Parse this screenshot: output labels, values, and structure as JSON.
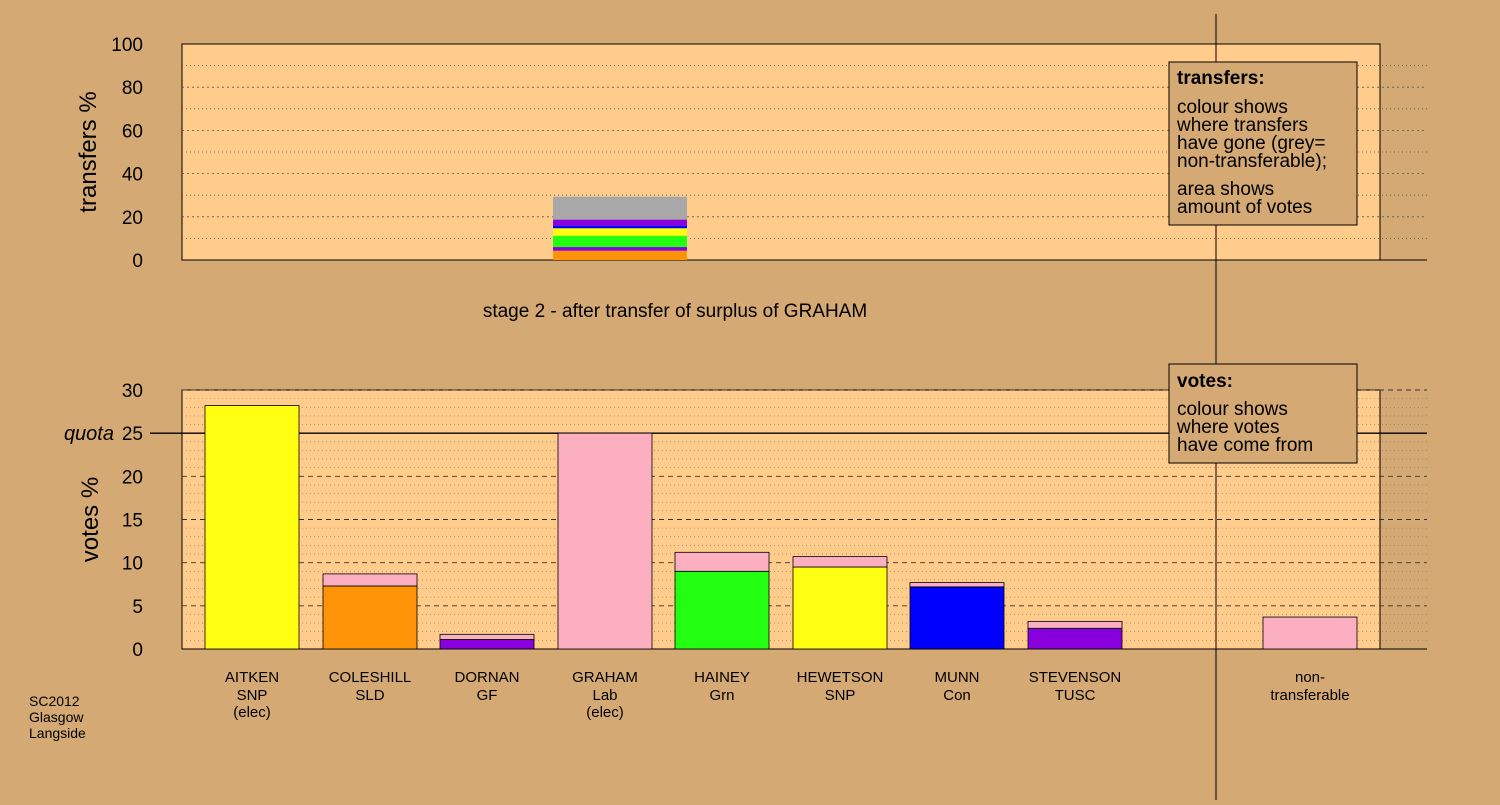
{
  "colors": {
    "background": "#d4a973",
    "plot_panel": "#ffcc8c",
    "legend_box": "#d4a973",
    "SNP": "#ffff11",
    "SLD": "#ff9408",
    "GF": "#8800dd",
    "Lab": "#fbafc0",
    "Grn": "#22ff11",
    "Con": "#0000ff",
    "TUSC": "#8800dd",
    "non_transferable_transfer": "#a8a8a8"
  },
  "chart_data": [
    {
      "id": "transfers",
      "type": "bar",
      "stacked": true,
      "ylabel": "transfers %",
      "ylim": [
        0,
        100
      ],
      "yticks": [
        0,
        20,
        40,
        60,
        80,
        100
      ],
      "title": "stage 2 - after transfer of surplus of GRAHAM",
      "bar_position": "GRAHAM",
      "segments": [
        {
          "to": "COLESHILL",
          "party": "SLD",
          "value": 4.3,
          "color": "#ff9408"
        },
        {
          "to": "DORNAN",
          "party": "GF",
          "value": 1.7,
          "color": "#8800dd"
        },
        {
          "to": "HAINEY",
          "party": "Grn",
          "value": 5.2,
          "color": "#22ff11"
        },
        {
          "to": "HEWETSON",
          "party": "SNP",
          "value": 3.5,
          "color": "#ffff11"
        },
        {
          "to": "MUNN",
          "party": "Con",
          "value": 1.2,
          "color": "#0000ff"
        },
        {
          "to": "STEVENSON",
          "party": "TUSC",
          "value": 2.8,
          "color": "#8800dd"
        },
        {
          "to": "non-transferable",
          "party": "",
          "value": 10.6,
          "color": "#a8a8a8"
        }
      ],
      "legend": {
        "title": "transfers:",
        "lines_1": [
          "colour shows",
          "where transfers",
          "have gone (grey=",
          "non-transferable);"
        ],
        "lines_2": [
          "area shows",
          "amount of votes"
        ],
        "position": "top-right"
      }
    },
    {
      "id": "votes",
      "type": "bar",
      "stacked": true,
      "ylabel": "votes %",
      "ylim": [
        0,
        30
      ],
      "yticks": [
        0,
        5,
        10,
        15,
        20,
        25,
        30
      ],
      "quota": 25,
      "quota_label": "quota",
      "candidates": [
        {
          "name": "AITKEN",
          "party": "SNP",
          "note": "(elec)",
          "segments": [
            {
              "from": "SNP",
              "value": 28.2,
              "color": "#ffff11"
            }
          ]
        },
        {
          "name": "COLESHILL",
          "party": "SLD",
          "note": "",
          "segments": [
            {
              "from": "SLD",
              "value": 7.3,
              "color": "#ff9408"
            },
            {
              "from": "Lab",
              "value": 1.4,
              "color": "#fbafc0"
            }
          ]
        },
        {
          "name": "DORNAN",
          "party": "GF",
          "note": "",
          "segments": [
            {
              "from": "GF",
              "value": 1.1,
              "color": "#8800dd"
            },
            {
              "from": "Lab",
              "value": 0.6,
              "color": "#fbafc0"
            }
          ]
        },
        {
          "name": "GRAHAM",
          "party": "Lab",
          "note": "(elec)",
          "segments": [
            {
              "from": "Lab",
              "value": 25.0,
              "color": "#fbafc0"
            }
          ]
        },
        {
          "name": "HAINEY",
          "party": "Grn",
          "note": "",
          "segments": [
            {
              "from": "Grn",
              "value": 9.0,
              "color": "#22ff11"
            },
            {
              "from": "Lab",
              "value": 2.2,
              "color": "#fbafc0"
            }
          ]
        },
        {
          "name": "HEWETSON",
          "party": "SNP",
          "note": "",
          "segments": [
            {
              "from": "SNP",
              "value": 9.5,
              "color": "#ffff11"
            },
            {
              "from": "Lab",
              "value": 1.2,
              "color": "#fbafc0"
            }
          ]
        },
        {
          "name": "MUNN",
          "party": "Con",
          "note": "",
          "segments": [
            {
              "from": "Con",
              "value": 7.2,
              "color": "#0000ff"
            },
            {
              "from": "Lab",
              "value": 0.5,
              "color": "#fbafc0"
            }
          ]
        },
        {
          "name": "STEVENSON",
          "party": "TUSC",
          "note": "",
          "segments": [
            {
              "from": "TUSC",
              "value": 2.4,
              "color": "#8800dd"
            },
            {
              "from": "Lab",
              "value": 0.8,
              "color": "#fbafc0"
            }
          ]
        }
      ],
      "non_transferable": {
        "label_1": "non-",
        "label_2": "transferable",
        "value": 3.7,
        "color": "#fbafc0"
      },
      "legend": {
        "title": "votes:",
        "lines": [
          "colour shows",
          "where votes",
          "have come from"
        ],
        "position": "top-right"
      }
    }
  ],
  "footer": {
    "lines": [
      "SC2012",
      "Glasgow",
      "Langside"
    ]
  }
}
